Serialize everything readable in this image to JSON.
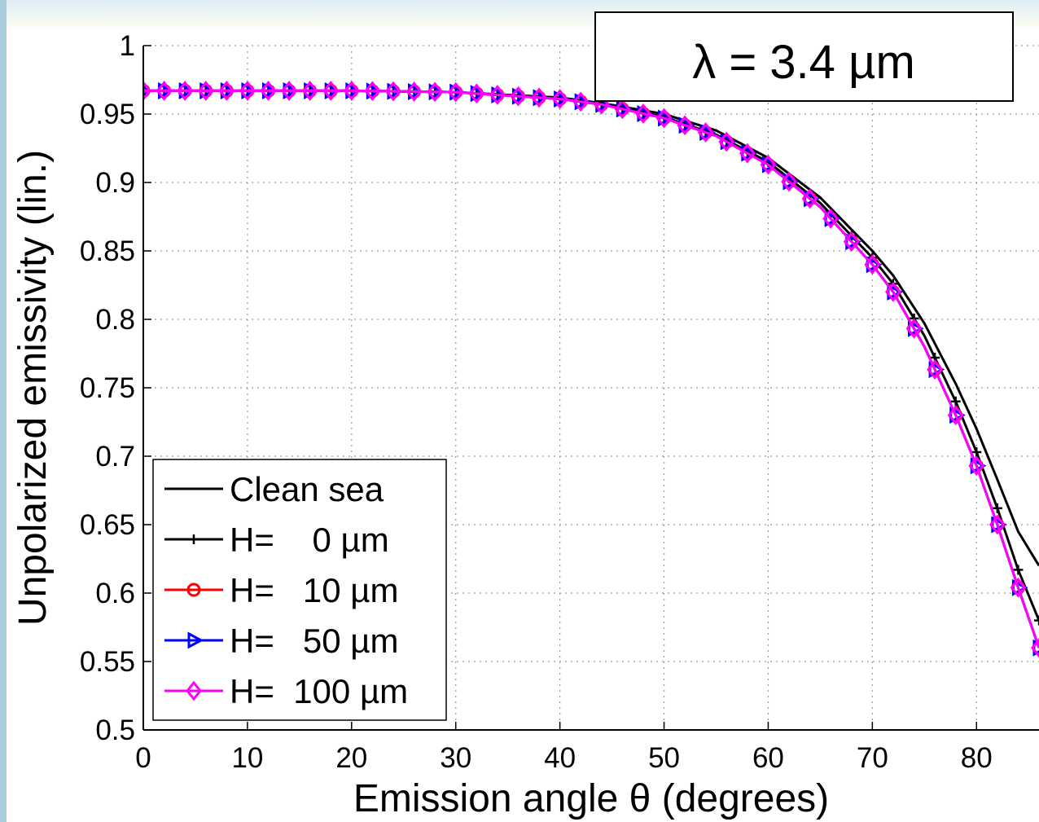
{
  "chart_data": {
    "type": "line",
    "xlabel": "Emission angle θ (degrees)",
    "ylabel": "Unpolarized emissivity (lin.)",
    "xlim": [
      0,
      86
    ],
    "ylim": [
      0.5,
      1
    ],
    "xticks": [
      0,
      10,
      20,
      30,
      40,
      50,
      60,
      70,
      80
    ],
    "yticks": [
      0.5,
      0.55,
      0.6,
      0.65,
      0.7,
      0.75,
      0.8,
      0.85,
      0.9,
      0.95,
      1
    ],
    "ytick_labels": [
      "0.5",
      "0.55",
      "0.6",
      "0.65",
      "0.7",
      "0.75",
      "0.8",
      "0.85",
      "0.9",
      "0.95",
      "1"
    ],
    "grid": true,
    "legend_position": "bottom-left",
    "annotation": "λ = 3.4 µm",
    "series": [
      {
        "name": "Clean sea",
        "color": "#000000",
        "marker": "none",
        "x": [
          0,
          10,
          20,
          30,
          40,
          44,
          50,
          55,
          60,
          65,
          70,
          72,
          75,
          78,
          80,
          82,
          84,
          86
        ],
        "y": [
          0.967,
          0.967,
          0.967,
          0.966,
          0.962,
          0.958,
          0.95,
          0.938,
          0.918,
          0.889,
          0.85,
          0.832,
          0.797,
          0.753,
          0.72,
          0.683,
          0.645,
          0.62
        ]
      },
      {
        "name": "H=    0 µm",
        "color": "#000000",
        "marker": "plus",
        "x": [
          0,
          10,
          20,
          30,
          40,
          44,
          50,
          55,
          60,
          65,
          70,
          72,
          75,
          78,
          80,
          82,
          84,
          86
        ],
        "y": [
          0.967,
          0.967,
          0.967,
          0.966,
          0.961,
          0.957,
          0.948,
          0.935,
          0.915,
          0.885,
          0.845,
          0.826,
          0.788,
          0.74,
          0.703,
          0.662,
          0.617,
          0.58
        ]
      },
      {
        "name": "H=   10 µm",
        "color": "#ff0000",
        "marker": "circle",
        "x": [
          0,
          10,
          20,
          30,
          40,
          44,
          50,
          55,
          60,
          65,
          70,
          72,
          75,
          78,
          80,
          82,
          84,
          86
        ],
        "y": [
          0.967,
          0.967,
          0.967,
          0.966,
          0.961,
          0.957,
          0.947,
          0.934,
          0.913,
          0.882,
          0.84,
          0.82,
          0.78,
          0.73,
          0.693,
          0.65,
          0.604,
          0.56
        ]
      },
      {
        "name": "H=   50 µm",
        "color": "#0000ff",
        "marker": "triangle",
        "x": [
          0,
          10,
          20,
          30,
          40,
          44,
          50,
          55,
          60,
          65,
          70,
          72,
          75,
          78,
          80,
          82,
          84,
          86
        ],
        "y": [
          0.967,
          0.967,
          0.967,
          0.966,
          0.961,
          0.957,
          0.947,
          0.934,
          0.913,
          0.882,
          0.84,
          0.82,
          0.78,
          0.73,
          0.693,
          0.65,
          0.604,
          0.56
        ]
      },
      {
        "name": "H=  100 µm",
        "color": "#ff00ff",
        "marker": "diamond",
        "x": [
          0,
          10,
          20,
          30,
          40,
          44,
          50,
          55,
          60,
          65,
          70,
          72,
          75,
          78,
          80,
          82,
          84,
          86
        ],
        "y": [
          0.967,
          0.967,
          0.967,
          0.966,
          0.961,
          0.957,
          0.947,
          0.934,
          0.913,
          0.882,
          0.84,
          0.82,
          0.78,
          0.73,
          0.693,
          0.65,
          0.604,
          0.56
        ]
      }
    ]
  }
}
